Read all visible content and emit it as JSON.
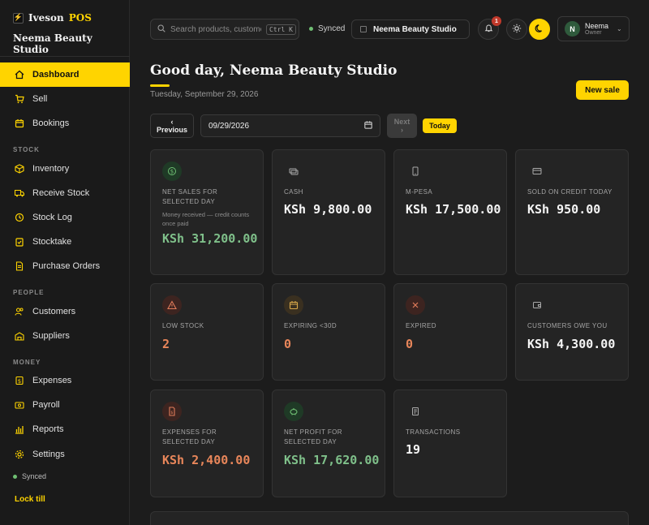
{
  "brand": {
    "name": "Iveson",
    "suffix": "POS",
    "store": "Neema Beauty Studio"
  },
  "sidebar": {
    "main": [
      {
        "label": "Dashboard",
        "icon": "home-icon"
      },
      {
        "label": "Sell",
        "icon": "cart-icon"
      },
      {
        "label": "Bookings",
        "icon": "calendar-icon"
      }
    ],
    "stock_title": "STOCK",
    "stock": [
      {
        "label": "Inventory",
        "icon": "box-icon"
      },
      {
        "label": "Receive Stock",
        "icon": "truck-icon"
      },
      {
        "label": "Stock Log",
        "icon": "history-icon"
      },
      {
        "label": "Stocktake",
        "icon": "clipboard-icon"
      },
      {
        "label": "Purchase Orders",
        "icon": "document-icon"
      }
    ],
    "people_title": "PEOPLE",
    "people": [
      {
        "label": "Customers",
        "icon": "users-icon"
      },
      {
        "label": "Suppliers",
        "icon": "building-icon"
      }
    ],
    "money_title": "MONEY",
    "money": [
      {
        "label": "Expenses",
        "icon": "receipt-icon"
      },
      {
        "label": "Payroll",
        "icon": "wallet-icon"
      },
      {
        "label": "Reports",
        "icon": "bar-chart-icon"
      },
      {
        "label": "Settings",
        "icon": "gear-icon"
      }
    ],
    "synced": "Synced",
    "lock": "Lock till"
  },
  "topbar": {
    "search_placeholder": "Search products, customers",
    "search_kbd": "Ctrl K",
    "synced": "Synced",
    "store": "Neema Beauty Studio",
    "notifications": "1",
    "user_initial": "N",
    "user_name": "Neema",
    "user_role": "Owner"
  },
  "header": {
    "greeting": "Good day, Neema Beauty Studio",
    "date": "Tuesday, September 29, 2026",
    "new_sale": "New sale"
  },
  "date_controls": {
    "previous_arrow": "‹",
    "previous": "Previous",
    "date_value": "09/29/2026",
    "next": "Next",
    "next_arrow": "›",
    "today": "Today"
  },
  "cards": {
    "net_sales": {
      "label": "NET SALES FOR SELECTED DAY",
      "sub": "Money received — credit counts once paid",
      "value": "KSh 31,200.00"
    },
    "cash": {
      "label": "CASH",
      "value": "KSh 9,800.00"
    },
    "mpesa": {
      "label": "M-PESA",
      "value": "KSh 17,500.00"
    },
    "credit": {
      "label": "SOLD ON CREDIT TODAY",
      "value": "KSh 950.00"
    },
    "low_stock": {
      "label": "LOW STOCK",
      "value": "2"
    },
    "expiring": {
      "label": "EXPIRING <30D",
      "value": "0"
    },
    "expired": {
      "label": "EXPIRED",
      "value": "0"
    },
    "owe": {
      "label": "CUSTOMERS OWE YOU",
      "value": "KSh 4,300.00"
    },
    "expenses": {
      "label": "EXPENSES FOR SELECTED DAY",
      "value": "KSh 2,400.00"
    },
    "profit": {
      "label": "NET PROFIT FOR SELECTED DAY",
      "value": "KSh 17,620.00"
    },
    "transactions": {
      "label": "TRANSACTIONS",
      "value": "19"
    }
  },
  "colors": {
    "accent": "#ffd400",
    "positive": "#7fc08a",
    "negative": "#e8865a"
  }
}
